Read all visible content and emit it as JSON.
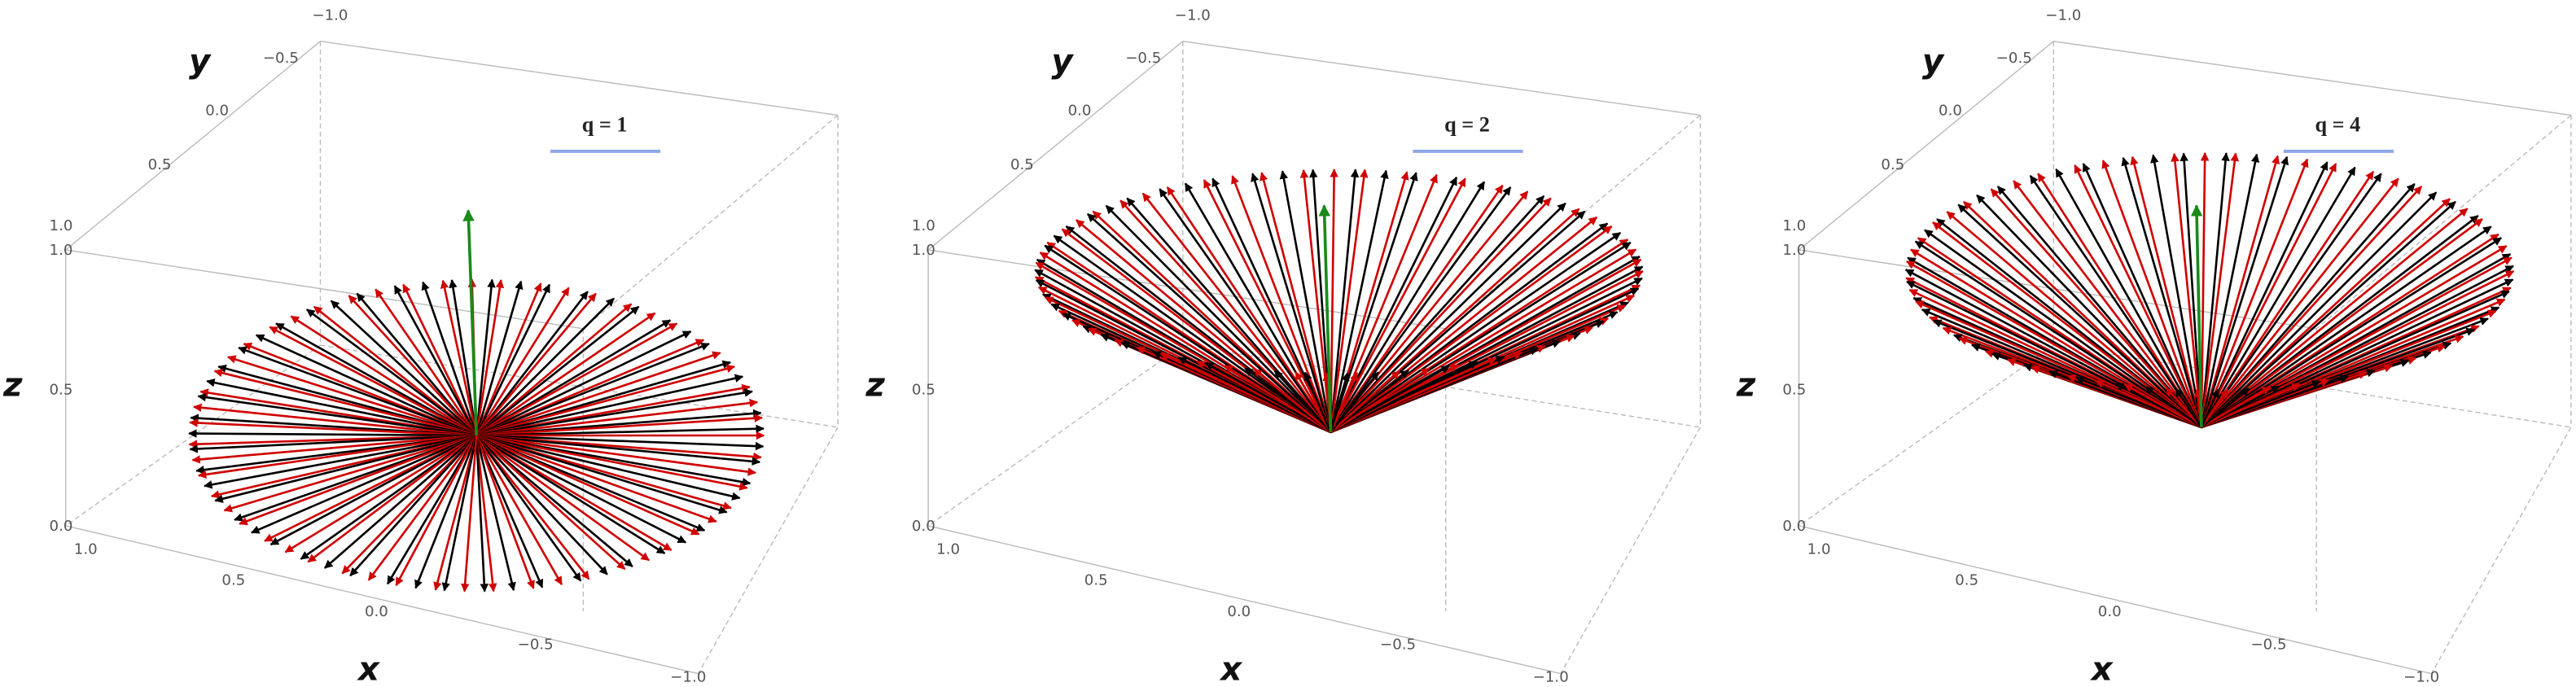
{
  "panels": [
    {
      "label": "q = 1",
      "x_label": "x",
      "y_label": "y",
      "z_label": "z",
      "x_ticks": [
        "1.0",
        "0.5",
        "0.0",
        "−0.5",
        "−1.0"
      ],
      "y_ticks": [
        "−1.0",
        "−0.5",
        "0.0",
        "0.5",
        "1.0"
      ],
      "z_ticks": [
        "0.0",
        "0.5",
        "1.0"
      ]
    },
    {
      "label": "q = 2",
      "x_label": "x",
      "y_label": "y",
      "z_label": "z",
      "x_ticks": [
        "1.0",
        "0.5",
        "0.0",
        "−0.5",
        "−1.0"
      ],
      "y_ticks": [
        "−1.0",
        "−0.5",
        "0.0",
        "0.5",
        "1.0"
      ],
      "z_ticks": [
        "0.0",
        "0.5",
        "1.0"
      ]
    },
    {
      "label": "q = 4",
      "x_label": "x",
      "y_label": "y",
      "z_label": "z",
      "x_ticks": [
        "1.0",
        "0.5",
        "0.0",
        "−0.5",
        "−1.0"
      ],
      "y_ticks": [
        "−1.0",
        "−0.5",
        "0.0",
        "0.5",
        "1.0"
      ],
      "z_ticks": [
        "0.0",
        "0.5",
        "1.0"
      ]
    }
  ]
}
